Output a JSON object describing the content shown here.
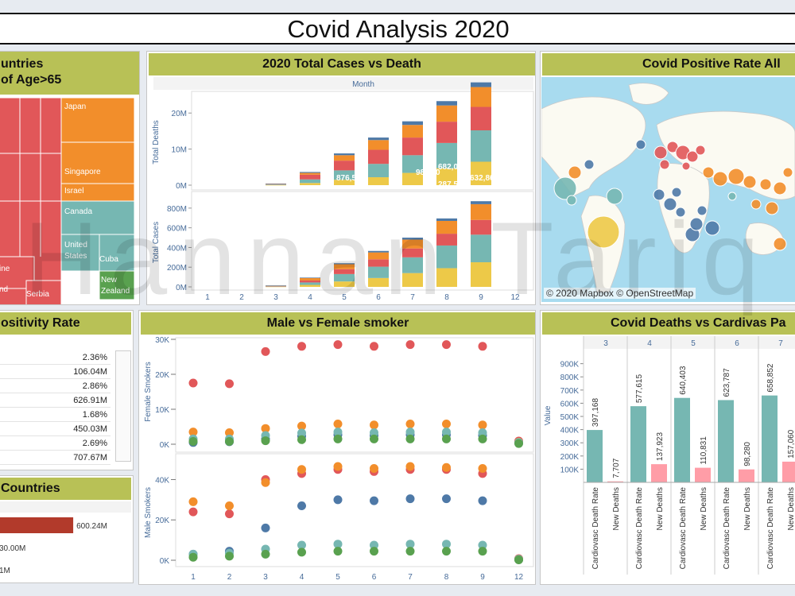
{
  "dashboard": {
    "title": "Covid Analysis 2020",
    "watermark": "Hannan Tariq"
  },
  "panels": {
    "treemap": {
      "title_line1": "untries",
      "title_line2": "of Age>65"
    },
    "total": {
      "title": "2020 Total Cases vs Death",
      "month_label": "Month"
    },
    "map": {
      "title": "Covid Positive Rate  All",
      "attribution": "© 2020 Mapbox © OpenStreetMap"
    },
    "positivity": {
      "title": "ositivity Rate"
    },
    "countries": {
      "title": "Countries"
    },
    "smoker": {
      "title": "Male vs Female smoker"
    },
    "cardio": {
      "title": "Covid Deaths vs Cardivas Pa"
    }
  },
  "positivity_rows": [
    "2.36%",
    "106.04M",
    "2.86%",
    "626.91M",
    "1.68%",
    "450.03M",
    "2.69%",
    "707.67M"
  ],
  "colors": {
    "red": "#e15759",
    "orange": "#f28e2b",
    "teal": "#76b7b2",
    "yellow": "#edc948",
    "blue": "#4e79a7",
    "green": "#59a14f",
    "pink": "#ff9da7",
    "darkred": "#b23a2b",
    "olive": "#b8c156"
  },
  "chart_data": [
    {
      "type": "treemap",
      "name": "treemap",
      "tiles": [
        {
          "label": "",
          "color": "red"
        },
        {
          "label": "Japan",
          "color": "orange"
        },
        {
          "label": "Singapore",
          "color": "orange"
        },
        {
          "label": "Israel",
          "color": "orange"
        },
        {
          "label": "Canada",
          "color": "teal"
        },
        {
          "label": "United States",
          "color": "teal"
        },
        {
          "label": "Cuba",
          "color": "teal"
        },
        {
          "label": "New Zealand",
          "color": "green"
        },
        {
          "label": "ine",
          "color": "red"
        },
        {
          "label": "nd",
          "color": "red"
        },
        {
          "label": "Serbia",
          "color": "red"
        }
      ]
    },
    {
      "type": "bar",
      "name": "total-deaths",
      "stacked": true,
      "ylabel": "Total Deaths",
      "categories": [
        "1",
        "2",
        "3",
        "4",
        "5",
        "6",
        "7",
        "8",
        "9",
        "12"
      ],
      "yticks": [
        "0M",
        "10M",
        "20M"
      ],
      "ylim": [
        0,
        26000000
      ],
      "series": [
        {
          "color": "yellow",
          "values": [
            0,
            0,
            60000,
            600000,
            1500000,
            2200000,
            3400000,
            4700000,
            6500000,
            0
          ]
        },
        {
          "color": "teal",
          "values": [
            0,
            0,
            130000,
            1000000,
            2600000,
            3700000,
            4900000,
            7000000,
            8700000,
            0
          ]
        },
        {
          "color": "red",
          "values": [
            0,
            0,
            130000,
            1300000,
            2700000,
            3900000,
            4900000,
            5900000,
            6500000,
            0
          ]
        },
        {
          "color": "orange",
          "values": [
            0,
            0,
            80000,
            500000,
            1500000,
            2700000,
            3500000,
            4500000,
            5500000,
            0
          ]
        },
        {
          "color": "blue",
          "values": [
            0,
            0,
            30000,
            250000,
            500000,
            700000,
            1000000,
            1200000,
            1300000,
            0
          ]
        }
      ],
      "data_labels": [
        "876,51",
        "988,30",
        "856,11",
        "682,03",
        "287,59",
        "357,02",
        "632,86"
      ]
    },
    {
      "type": "bar",
      "name": "total-cases",
      "stacked": true,
      "ylabel": "Total Cases",
      "categories": [
        "1",
        "2",
        "3",
        "4",
        "5",
        "6",
        "7",
        "8",
        "9",
        "12"
      ],
      "yticks": [
        "0M",
        "200M",
        "400M",
        "600M",
        "800M"
      ],
      "ylim": [
        0,
        920000000
      ],
      "series": [
        {
          "color": "yellow",
          "values": [
            0,
            0,
            3000000,
            20000000,
            55000000,
            90000000,
            140000000,
            190000000,
            250000000,
            0
          ]
        },
        {
          "color": "teal",
          "values": [
            0,
            0,
            4000000,
            25000000,
            75000000,
            115000000,
            160000000,
            230000000,
            280000000,
            0
          ]
        },
        {
          "color": "red",
          "values": [
            0,
            0,
            3000000,
            20000000,
            50000000,
            75000000,
            90000000,
            120000000,
            150000000,
            0
          ]
        },
        {
          "color": "orange",
          "values": [
            0,
            0,
            3000000,
            25000000,
            50000000,
            70000000,
            90000000,
            130000000,
            160000000,
            0
          ]
        },
        {
          "color": "blue",
          "values": [
            0,
            0,
            1000000,
            5000000,
            10000000,
            15000000,
            20000000,
            25000000,
            30000000,
            0
          ]
        }
      ]
    },
    {
      "type": "scatter",
      "name": "female-smokers",
      "ylabel": "Female Smokers",
      "categories": [
        "1",
        "2",
        "3",
        "4",
        "5",
        "6",
        "7",
        "8",
        "9",
        "12"
      ],
      "yticks": [
        "0K",
        "10K",
        "20K",
        "30K"
      ],
      "ylim": [
        0,
        30000
      ],
      "series": [
        {
          "color": "red",
          "values": [
            17500,
            17300,
            26500,
            28000,
            28500,
            28000,
            28500,
            28500,
            28000,
            900
          ]
        },
        {
          "color": "orange",
          "values": [
            3500,
            3300,
            4500,
            5200,
            5800,
            5500,
            5800,
            5800,
            5500,
            600
          ]
        },
        {
          "color": "blue",
          "values": [
            500,
            700,
            1500,
            2300,
            2700,
            2500,
            2700,
            2700,
            2500,
            300
          ]
        },
        {
          "color": "teal",
          "values": [
            1500,
            1500,
            2500,
            3200,
            3500,
            3300,
            3500,
            3500,
            3300,
            500
          ]
        },
        {
          "color": "green",
          "values": [
            800,
            800,
            1000,
            1300,
            1500,
            1500,
            1500,
            1500,
            1500,
            200
          ]
        }
      ]
    },
    {
      "type": "scatter",
      "name": "male-smokers",
      "ylabel": "Male Smokers",
      "categories": [
        "1",
        "2",
        "3",
        "4",
        "5",
        "6",
        "7",
        "8",
        "9",
        "12"
      ],
      "yticks": [
        "0K",
        "20K",
        "40K"
      ],
      "ylim": [
        0,
        52000
      ],
      "series": [
        {
          "color": "red",
          "values": [
            24000,
            23000,
            40000,
            43000,
            45000,
            44000,
            45000,
            45000,
            43000,
            800
          ]
        },
        {
          "color": "orange",
          "values": [
            29000,
            27000,
            38500,
            45000,
            46500,
            45500,
            46500,
            46000,
            45500,
            500
          ]
        },
        {
          "color": "blue",
          "values": [
            3000,
            4500,
            16000,
            27000,
            30000,
            29500,
            30500,
            30500,
            29500,
            300
          ]
        },
        {
          "color": "teal",
          "values": [
            3000,
            3500,
            5500,
            7500,
            8000,
            7500,
            8000,
            8000,
            7500,
            500
          ]
        },
        {
          "color": "green",
          "values": [
            1500,
            2000,
            3000,
            4000,
            4500,
            4500,
            4500,
            4500,
            4500,
            200
          ]
        }
      ]
    },
    {
      "type": "bar",
      "name": "countries",
      "orientation": "horizontal",
      "bars": [
        {
          "label": "600.24M",
          "value": 600.24,
          "color": "darkred"
        }
      ],
      "extra_labels": [
        "30.00M",
        "1M"
      ]
    },
    {
      "type": "bar",
      "name": "cardio",
      "ylabel": "Value",
      "months": [
        "3",
        "4",
        "5",
        "6",
        "7"
      ],
      "yticks": [
        "100K",
        "200K",
        "300K",
        "400K",
        "500K",
        "600K",
        "700K",
        "800K",
        "900K"
      ],
      "ylim": [
        0,
        940000
      ],
      "groups": [
        {
          "month": "3",
          "cardio": 397168,
          "cardio_label": "397,168",
          "deaths": 7707,
          "deaths_label": "7,707"
        },
        {
          "month": "4",
          "cardio": 577615,
          "cardio_label": "577,615",
          "deaths": 137923,
          "deaths_label": "137,923"
        },
        {
          "month": "5",
          "cardio": 640403,
          "cardio_label": "640,403",
          "deaths": 110831,
          "deaths_label": "110,831"
        },
        {
          "month": "6",
          "cardio": 623787,
          "cardio_label": "623,787",
          "deaths": 98280,
          "deaths_label": "98,280"
        },
        {
          "month": "7",
          "cardio": 658852,
          "cardio_label": "658,852",
          "deaths": 157060,
          "deaths_label": "157,060"
        }
      ],
      "category_labels": [
        "Cardiovasc Death Rate",
        "New Deaths"
      ]
    }
  ]
}
